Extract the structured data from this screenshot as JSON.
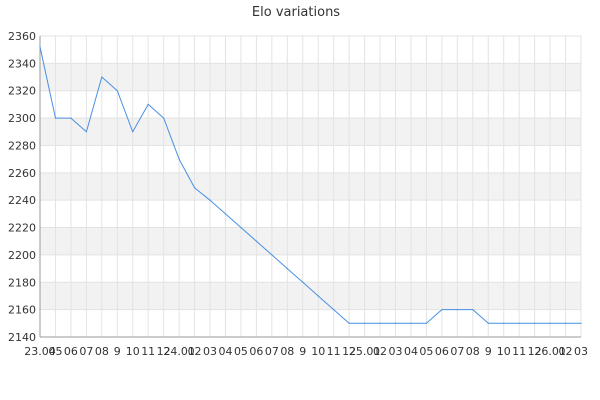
{
  "chart_data": {
    "type": "line",
    "title": "Elo variations",
    "xlabel": "",
    "ylabel": "",
    "ylim": [
      2140,
      2360
    ],
    "yticks": [
      2140,
      2160,
      2180,
      2200,
      2220,
      2240,
      2260,
      2280,
      2300,
      2320,
      2340,
      2360
    ],
    "x_tick_labels": [
      "23.04",
      "05",
      "06",
      "07",
      "08",
      "9",
      "10",
      "11",
      "12",
      "24.01",
      "02",
      "03",
      "04",
      "05",
      "06",
      "07",
      "08",
      "9",
      "10",
      "11",
      "12",
      "25.01",
      "02",
      "03",
      "04",
      "05",
      "06",
      "07",
      "08",
      "9",
      "10",
      "11",
      "12",
      "26.01",
      "02",
      "03"
    ],
    "grid": true,
    "alternating_bands": true,
    "legend": "none",
    "series": [
      {
        "color": "#4a90e2",
        "values": [
          2352,
          2300,
          2300,
          2290,
          2330,
          2320,
          2290,
          2310,
          2300,
          2270,
          2249,
          2240,
          2230,
          2220,
          2210,
          2200,
          2190,
          2180,
          2170,
          2160,
          2150,
          2150,
          2150,
          2150,
          2150,
          2150,
          2160,
          2160,
          2160,
          2150,
          2150,
          2150,
          2150,
          2150,
          2150,
          2150
        ]
      }
    ]
  }
}
